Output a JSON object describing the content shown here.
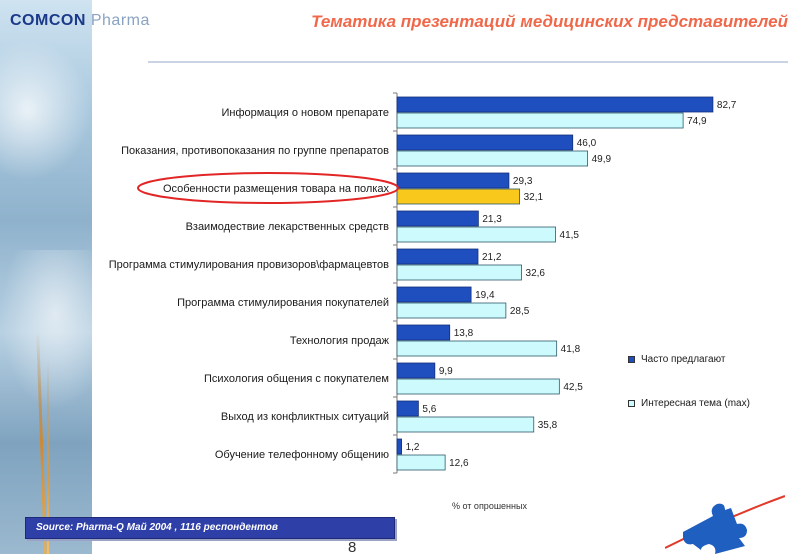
{
  "header": {
    "logo_main": "COMCON",
    "logo_sub": "Pharma",
    "title": "Тематика презентаций медицинских представителей"
  },
  "colors": {
    "series_often": "#1f4fbf",
    "series_interest": "#ccfafd",
    "highlight_bar": "#f8c81c",
    "highlight_ring": "#e22626",
    "source_bg": "#2f3fa8"
  },
  "chart_data": {
    "type": "bar",
    "orientation": "horizontal",
    "categories": [
      "Информация о новом препарате",
      "Показания, противопоказания по группе препаратов",
      "Особенности размещения товара на полках",
      "Взаимодествие лекарственных средств",
      "Программа стимулирования провизоров\\фармацевтов",
      "Программа стимулирования покупателей",
      "Технология продаж",
      "Психология общения с покупателем",
      "Выход из конфликтных ситуаций",
      "Обучение телефонному общению"
    ],
    "series": [
      {
        "name": "Часто предлагают",
        "values": [
          82.7,
          46.0,
          29.3,
          21.3,
          21.2,
          19.4,
          13.8,
          9.9,
          5.6,
          1.2
        ]
      },
      {
        "name": "Интересная тема (max)",
        "values": [
          74.9,
          49.9,
          32.1,
          41.5,
          32.6,
          28.5,
          41.8,
          42.5,
          35.8,
          12.6
        ]
      }
    ],
    "value_labels": {
      "often": [
        "82,7",
        "46,0",
        "29,3",
        "21,3",
        "21,2",
        "19,4",
        "13,8",
        "9,9",
        "5,6",
        "1,2"
      ],
      "interest": [
        "74,9",
        "49,9",
        "32,1",
        "41,5",
        "32,6",
        "28,5",
        "41,8",
        "42,5",
        "35,8",
        "12,6"
      ]
    },
    "highlighted_category_index": 2,
    "xlabel": "% от опрошенных",
    "xlim": [
      0,
      100
    ],
    "legend_position": "right"
  },
  "footer": {
    "source": "Source: Pharma-Q  Май 2004 , 1116 респондентов",
    "page_number": "8"
  }
}
